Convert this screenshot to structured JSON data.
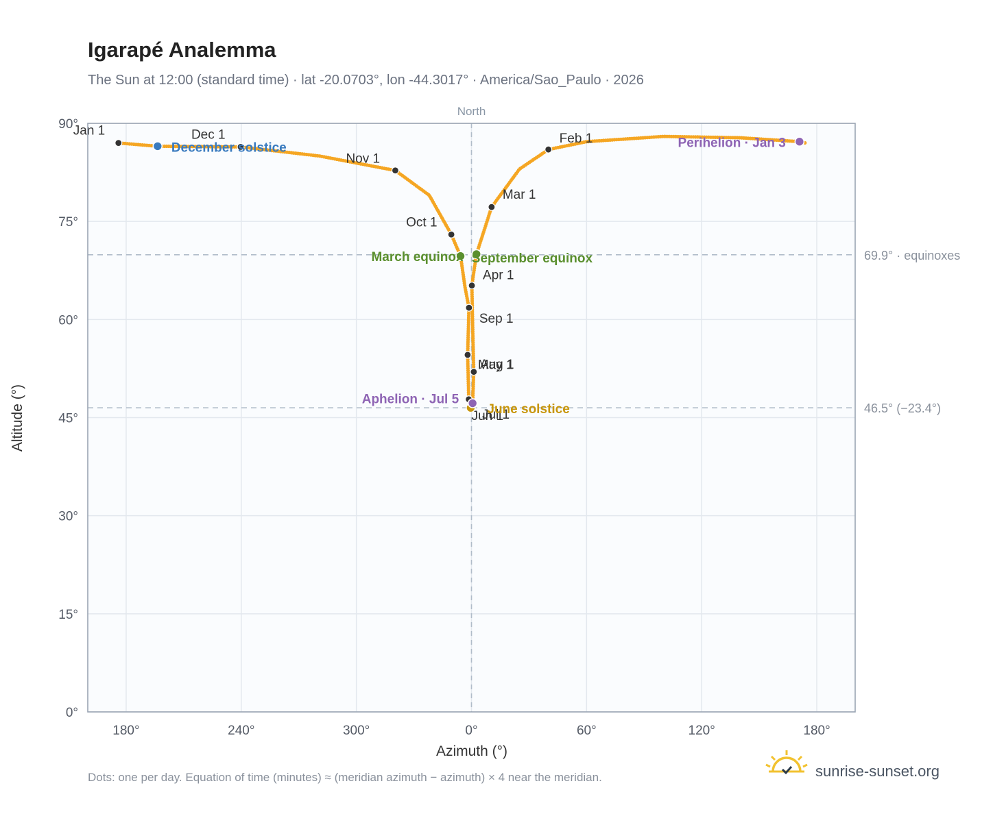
{
  "header": {
    "title": "Igarapé Analemma",
    "subtitle": "The Sun at 12:00 (standard time) · lat -20.0703°, lon -44.3017° · America/Sao_Paulo · 2026"
  },
  "footer": {
    "note": "Dots: one per day. Equation of time (minutes) ≈ (meridian azimuth − azimuth) × 4 near the meridian.",
    "brand": "sunrise-sunset.org",
    "brand_icon": "sun-logo-icon"
  },
  "colors": {
    "path": "#f5a623",
    "month_dot": "#333333",
    "december_solstice": "#3a7bbf",
    "equinox": "#5a8f2e",
    "june_solstice": "#c8960c",
    "apsis": "#8e64b4",
    "plot_bg": "#fafcfe",
    "grid": "#e3e8ee",
    "frame": "#9aa5b3",
    "reference": "#b0bcc9"
  },
  "chart_data": {
    "type": "scatter",
    "title": "Igarapé Analemma",
    "xlabel": "Azimuth (°)",
    "ylabel": "Altitude (°)",
    "xlim": [
      160,
      200
    ],
    "x_tick_labels": [
      {
        "x": 180,
        "label": "180°"
      },
      {
        "x": 240,
        "label": "240°"
      },
      {
        "x": 300,
        "label": "300°"
      },
      {
        "x": 360,
        "label": "0°"
      },
      {
        "x": 420,
        "label": "60°"
      },
      {
        "x": 480,
        "label": "120°"
      },
      {
        "x": 540,
        "label": "180°"
      }
    ],
    "ylim": [
      0,
      90
    ],
    "y_tick_labels": [
      {
        "y": 0,
        "label": "0°"
      },
      {
        "y": 15,
        "label": "15°"
      },
      {
        "y": 30,
        "label": "30°"
      },
      {
        "y": 45,
        "label": "45°"
      },
      {
        "y": 60,
        "label": "60°"
      },
      {
        "y": 75,
        "label": "75°"
      },
      {
        "y": 90,
        "label": "90°"
      }
    ],
    "grid": true,
    "meridian": {
      "x": 360,
      "label": "North"
    },
    "reference_lines": [
      {
        "y": 69.9,
        "label": "69.9° · equinoxes"
      },
      {
        "y": 46.5,
        "label": "46.5° (−23.4°)"
      }
    ],
    "month_markers": [
      {
        "label": "Jan 1",
        "x": 176.0,
        "y": 87.0
      },
      {
        "label": "Feb 1",
        "x": 400.1,
        "y": 86.0
      },
      {
        "label": "Mar 1",
        "x": 370.5,
        "y": 77.2
      },
      {
        "label": "Apr 1",
        "x": 360.2,
        "y": 65.2
      },
      {
        "label": "May 1",
        "x": 361.2,
        "y": 52.0
      },
      {
        "label": "Jun 1",
        "x": 358.6,
        "y": 47.8
      },
      {
        "label": "Jul 1",
        "x": 359.8,
        "y": 46.5
      },
      {
        "label": "Aug 1",
        "x": 358.0,
        "y": 54.6
      },
      {
        "label": "Sep 1",
        "x": 358.7,
        "y": 61.8
      },
      {
        "label": "Oct 1",
        "x": 349.5,
        "y": 73.0
      },
      {
        "label": "Nov 1",
        "x": 320.3,
        "y": 82.8
      },
      {
        "label": "Dec 1",
        "x": 239.7,
        "y": 86.4
      }
    ],
    "events": [
      {
        "label": "December solstice",
        "x": 196.4,
        "y": 86.5,
        "role": "december_solstice"
      },
      {
        "label": "March equinox",
        "x": 354.3,
        "y": 69.7,
        "role": "equinox"
      },
      {
        "label": "September equinox",
        "x": 362.6,
        "y": 70.0,
        "role": "equinox"
      },
      {
        "label": "June solstice",
        "x": 359.6,
        "y": 46.5,
        "role": "june_solstice"
      },
      {
        "label": "Aphelion · Jul 5",
        "x": 360.6,
        "y": 47.2,
        "role": "apsis"
      },
      {
        "label": "Perihelion · Jan 3",
        "x": 531.0,
        "y": 87.2,
        "role": "apsis"
      }
    ],
    "path_knots": [
      {
        "x": 176.0,
        "y": 87.0
      },
      {
        "x": 196.4,
        "y": 86.5
      },
      {
        "x": 239.7,
        "y": 86.4
      },
      {
        "x": 281.0,
        "y": 85.0
      },
      {
        "x": 320.3,
        "y": 82.8
      },
      {
        "x": 338.0,
        "y": 79.0
      },
      {
        "x": 349.5,
        "y": 73.0
      },
      {
        "x": 354.3,
        "y": 69.7
      },
      {
        "x": 356.6,
        "y": 65.0
      },
      {
        "x": 358.7,
        "y": 61.8
      },
      {
        "x": 358.0,
        "y": 54.6
      },
      {
        "x": 358.6,
        "y": 47.8
      },
      {
        "x": 359.6,
        "y": 46.5
      },
      {
        "x": 360.6,
        "y": 47.2
      },
      {
        "x": 361.2,
        "y": 52.0
      },
      {
        "x": 360.7,
        "y": 58.0
      },
      {
        "x": 360.2,
        "y": 65.2
      },
      {
        "x": 362.6,
        "y": 70.0
      },
      {
        "x": 370.5,
        "y": 77.2
      },
      {
        "x": 385.0,
        "y": 83.0
      },
      {
        "x": 400.1,
        "y": 86.0
      },
      {
        "x": 420.0,
        "y": 87.2
      },
      {
        "x": 460.0,
        "y": 88.0
      },
      {
        "x": 500.0,
        "y": 87.8
      },
      {
        "x": 531.0,
        "y": 87.2
      },
      {
        "x": 534.0,
        "y": 87.0
      }
    ]
  }
}
